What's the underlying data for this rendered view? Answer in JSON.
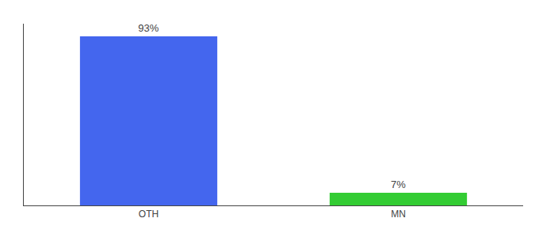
{
  "chart_data": {
    "type": "bar",
    "categories": [
      "OTH",
      "MN"
    ],
    "values": [
      93,
      7
    ],
    "value_labels": [
      "93%",
      "7%"
    ],
    "colors": [
      "#4466ee",
      "#33cc33"
    ],
    "ylim": [
      0,
      100
    ],
    "data_labels": true,
    "tick_labels": "x",
    "grid": false
  }
}
